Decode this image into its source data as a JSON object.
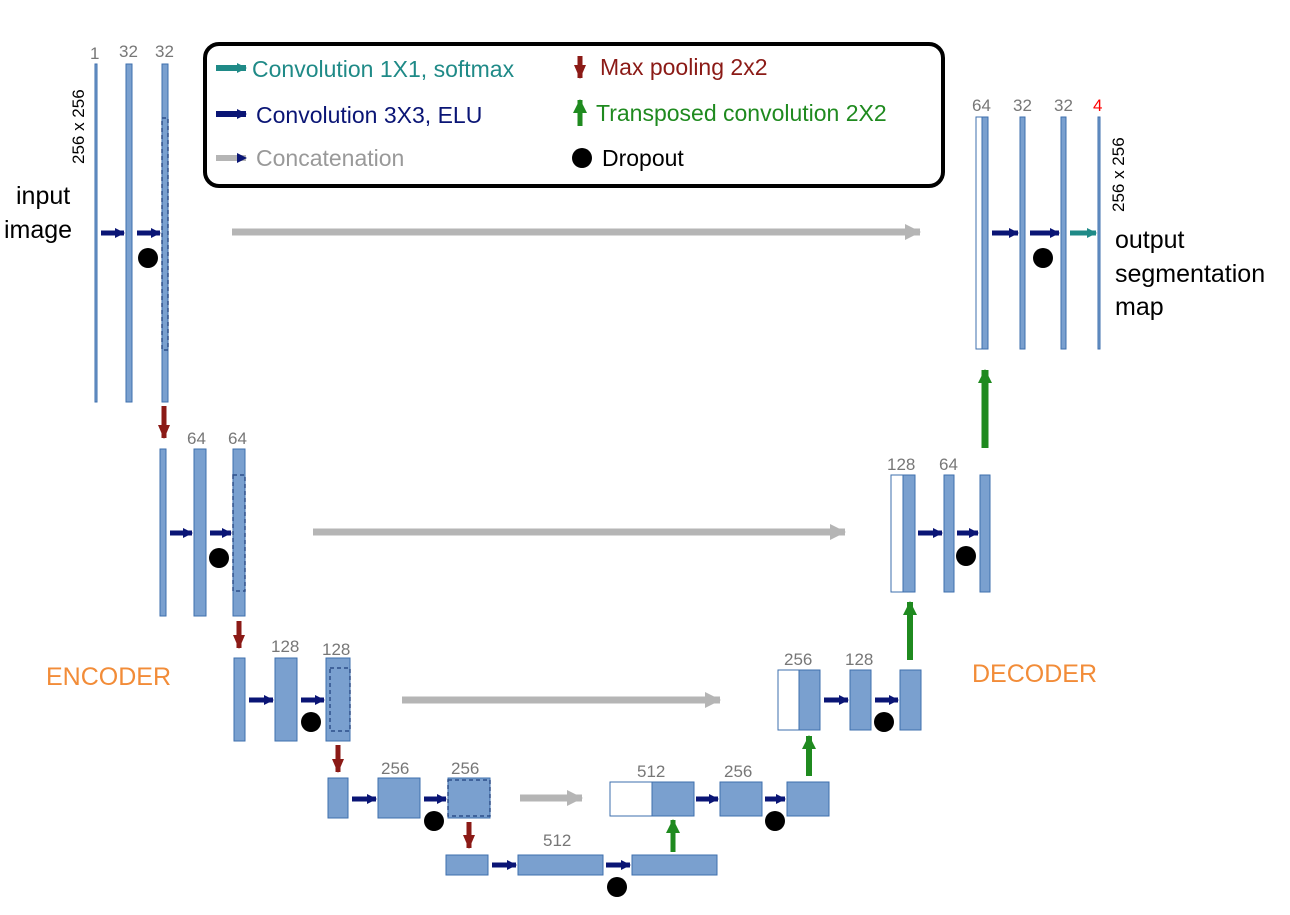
{
  "colors": {
    "block_fill": "#7aa0cf",
    "block_stroke": "#3e6fae",
    "channel_label": "#777777",
    "output_channel_label": "#ff0000",
    "conv1x1": "#1f8a87",
    "conv3x3": "#0a1575",
    "concat": "#b5b5b5",
    "maxpool": "#8b1a16",
    "transposed": "#1f8a1f",
    "dropout": "#000000",
    "section_label": "#f28c38"
  },
  "legend": {
    "conv1x1": "Convolution 1X1, softmax",
    "conv3x3": "Convolution 3X3, ELU",
    "concat": "Concatenation",
    "maxpool": "Max pooling 2x2",
    "transposed": "Transposed convolution 2X2",
    "dropout": "Dropout"
  },
  "labels": {
    "input_line1": "input",
    "input_line2": "image",
    "input_size": "256 x 256",
    "output_line1": "output",
    "output_line2": "segmentation",
    "output_line3": "map",
    "output_size": "256 x 256",
    "encoder": "ENCODER",
    "decoder": "DECODER"
  },
  "channels": {
    "enc1": [
      "1",
      "32",
      "32"
    ],
    "enc2": [
      "64",
      "64"
    ],
    "enc3": [
      "128",
      "128"
    ],
    "enc4": [
      "256",
      "256"
    ],
    "bottleneck": "512",
    "dec4": [
      "512",
      "256"
    ],
    "dec3": [
      "256",
      "128"
    ],
    "dec2": [
      "128",
      "64"
    ],
    "dec1": [
      "64",
      "32",
      "32",
      "4"
    ]
  }
}
